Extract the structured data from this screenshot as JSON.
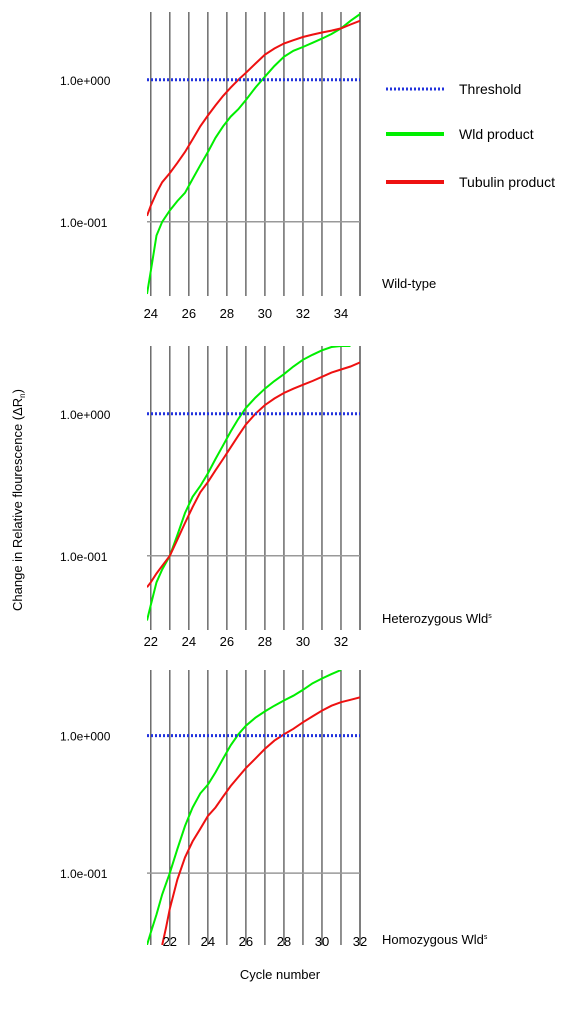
{
  "figure": {
    "xlabel": "Cycle  number",
    "ylabel": "Change in Relative flourescence (ΔR",
    "ylabel_sub": "n",
    "ylabel_close": ")"
  },
  "legend": {
    "placement": "right of top panel",
    "items": [
      {
        "label": "Threshold",
        "color": "#2233dd",
        "style": "dotted"
      },
      {
        "label": "Wld product",
        "color": "#00ee00",
        "style": "solid"
      },
      {
        "label": "Tubulin product",
        "color": "#ee1111",
        "style": "solid"
      }
    ]
  },
  "chart_data": [
    {
      "type": "line",
      "panel_label": "Wild-type",
      "panel_label_sup": "",
      "x_ticks": [
        24,
        26,
        28,
        30,
        32,
        34
      ],
      "xlim": [
        23.8,
        35.0
      ],
      "y_scale": "log",
      "y_ticks": [
        {
          "value": 1.0,
          "label": "1.0e+000"
        },
        {
          "value": 0.1,
          "label": "1.0e-001"
        }
      ],
      "ylim": [
        0.03,
        3.0
      ],
      "threshold": 1.0,
      "grid": "vertical lines at each integer cycle; horizontal lines at y ticks",
      "series": [
        {
          "name": "Wld product",
          "color": "#00ee00",
          "x": [
            23.8,
            24.0,
            24.3,
            24.6,
            25.0,
            25.4,
            25.8,
            26.2,
            26.6,
            27.0,
            27.4,
            27.8,
            28.2,
            28.6,
            29.0,
            29.5,
            30.0,
            30.5,
            31.0,
            31.5,
            32.0,
            32.5,
            33.0,
            33.5,
            34.0,
            34.5,
            35.0
          ],
          "y": [
            0.031,
            0.045,
            0.08,
            0.1,
            0.12,
            0.14,
            0.16,
            0.2,
            0.25,
            0.31,
            0.39,
            0.47,
            0.55,
            0.62,
            0.72,
            0.88,
            1.05,
            1.25,
            1.45,
            1.6,
            1.7,
            1.82,
            1.95,
            2.1,
            2.3,
            2.6,
            2.9
          ]
        },
        {
          "name": "Tubulin product",
          "color": "#ee1111",
          "x": [
            23.8,
            24.0,
            24.3,
            24.6,
            25.0,
            25.4,
            25.8,
            26.2,
            26.6,
            27.0,
            27.4,
            27.8,
            28.2,
            28.6,
            29.0,
            29.5,
            30.0,
            30.5,
            31.0,
            31.5,
            32.0,
            32.5,
            33.0,
            33.5,
            34.0,
            34.5,
            35.0
          ],
          "y": [
            0.11,
            0.13,
            0.16,
            0.19,
            0.22,
            0.26,
            0.31,
            0.38,
            0.47,
            0.56,
            0.66,
            0.77,
            0.88,
            1.0,
            1.12,
            1.3,
            1.5,
            1.66,
            1.8,
            1.9,
            2.0,
            2.08,
            2.15,
            2.22,
            2.3,
            2.45,
            2.6
          ]
        }
      ]
    },
    {
      "type": "line",
      "panel_label": "Heterozygous Wld",
      "panel_label_sup": "s",
      "x_ticks": [
        22,
        24,
        26,
        28,
        30,
        32
      ],
      "xlim": [
        21.8,
        33.0
      ],
      "y_scale": "log",
      "y_ticks": [
        {
          "value": 1.0,
          "label": "1.0e+000"
        },
        {
          "value": 0.1,
          "label": "1.0e-001"
        }
      ],
      "ylim": [
        0.03,
        3.0
      ],
      "threshold": 1.0,
      "grid": "vertical lines at each integer cycle; horizontal lines at y ticks",
      "series": [
        {
          "name": "Wld product",
          "color": "#00ee00",
          "x": [
            21.8,
            22.0,
            22.3,
            22.6,
            23.0,
            23.4,
            23.8,
            24.2,
            24.6,
            25.0,
            25.4,
            25.8,
            26.2,
            26.6,
            27.0,
            27.5,
            28.0,
            28.5,
            29.0,
            29.5,
            30.0,
            30.5,
            31.0,
            31.5,
            32.0,
            32.5
          ],
          "y": [
            0.035,
            0.045,
            0.065,
            0.08,
            0.1,
            0.14,
            0.2,
            0.26,
            0.31,
            0.38,
            0.48,
            0.6,
            0.75,
            0.92,
            1.1,
            1.3,
            1.5,
            1.7,
            1.9,
            2.15,
            2.4,
            2.6,
            2.8,
            2.95,
            3.0,
            3.0
          ]
        },
        {
          "name": "Tubulin product",
          "color": "#ee1111",
          "x": [
            21.8,
            22.0,
            22.3,
            22.6,
            23.0,
            23.4,
            23.8,
            24.2,
            24.6,
            25.0,
            25.4,
            25.8,
            26.2,
            26.6,
            27.0,
            27.5,
            28.0,
            28.5,
            29.0,
            29.5,
            30.0,
            30.5,
            31.0,
            31.5,
            32.0,
            32.5,
            33.0
          ],
          "y": [
            0.06,
            0.065,
            0.075,
            0.085,
            0.1,
            0.13,
            0.17,
            0.22,
            0.28,
            0.33,
            0.4,
            0.48,
            0.58,
            0.7,
            0.84,
            1.0,
            1.15,
            1.28,
            1.4,
            1.5,
            1.6,
            1.7,
            1.82,
            1.95,
            2.05,
            2.15,
            2.3
          ]
        }
      ]
    },
    {
      "type": "line",
      "panel_label": "Homozygous Wld",
      "panel_label_sup": "s",
      "x_ticks": [
        22,
        24,
        26,
        28,
        30,
        32
      ],
      "xlim": [
        20.8,
        32.0
      ],
      "y_scale": "log",
      "y_ticks": [
        {
          "value": 1.0,
          "label": "1.0e+000"
        },
        {
          "value": 0.1,
          "label": "1.0e-001"
        }
      ],
      "ylim": [
        0.03,
        3.0
      ],
      "threshold": 1.0,
      "grid": "vertical lines at each integer cycle; horizontal lines at y ticks",
      "series": [
        {
          "name": "Wld product",
          "color": "#00ee00",
          "x": [
            20.8,
            21.0,
            21.3,
            21.6,
            22.0,
            22.4,
            22.8,
            23.2,
            23.6,
            24.0,
            24.4,
            24.8,
            25.2,
            25.6,
            26.0,
            26.5,
            27.0,
            27.5,
            28.0,
            28.5,
            29.0,
            29.5,
            30.0,
            30.5,
            31.0
          ],
          "y": [
            0.03,
            0.037,
            0.05,
            0.07,
            0.1,
            0.15,
            0.22,
            0.3,
            0.38,
            0.44,
            0.54,
            0.68,
            0.85,
            1.02,
            1.18,
            1.35,
            1.5,
            1.65,
            1.8,
            1.95,
            2.15,
            2.4,
            2.6,
            2.8,
            3.0
          ]
        },
        {
          "name": "Tubulin product",
          "color": "#ee1111",
          "x": [
            21.6,
            21.8,
            22.0,
            22.4,
            22.8,
            23.2,
            23.6,
            24.0,
            24.4,
            24.8,
            25.2,
            25.6,
            26.0,
            26.5,
            27.0,
            27.5,
            28.0,
            28.5,
            29.0,
            29.5,
            30.0,
            30.5,
            31.0,
            31.5,
            32.0
          ],
          "y": [
            0.03,
            0.04,
            0.055,
            0.09,
            0.13,
            0.17,
            0.21,
            0.26,
            0.3,
            0.36,
            0.43,
            0.5,
            0.58,
            0.68,
            0.8,
            0.92,
            1.02,
            1.12,
            1.25,
            1.38,
            1.52,
            1.65,
            1.75,
            1.82,
            1.9
          ]
        }
      ]
    }
  ]
}
